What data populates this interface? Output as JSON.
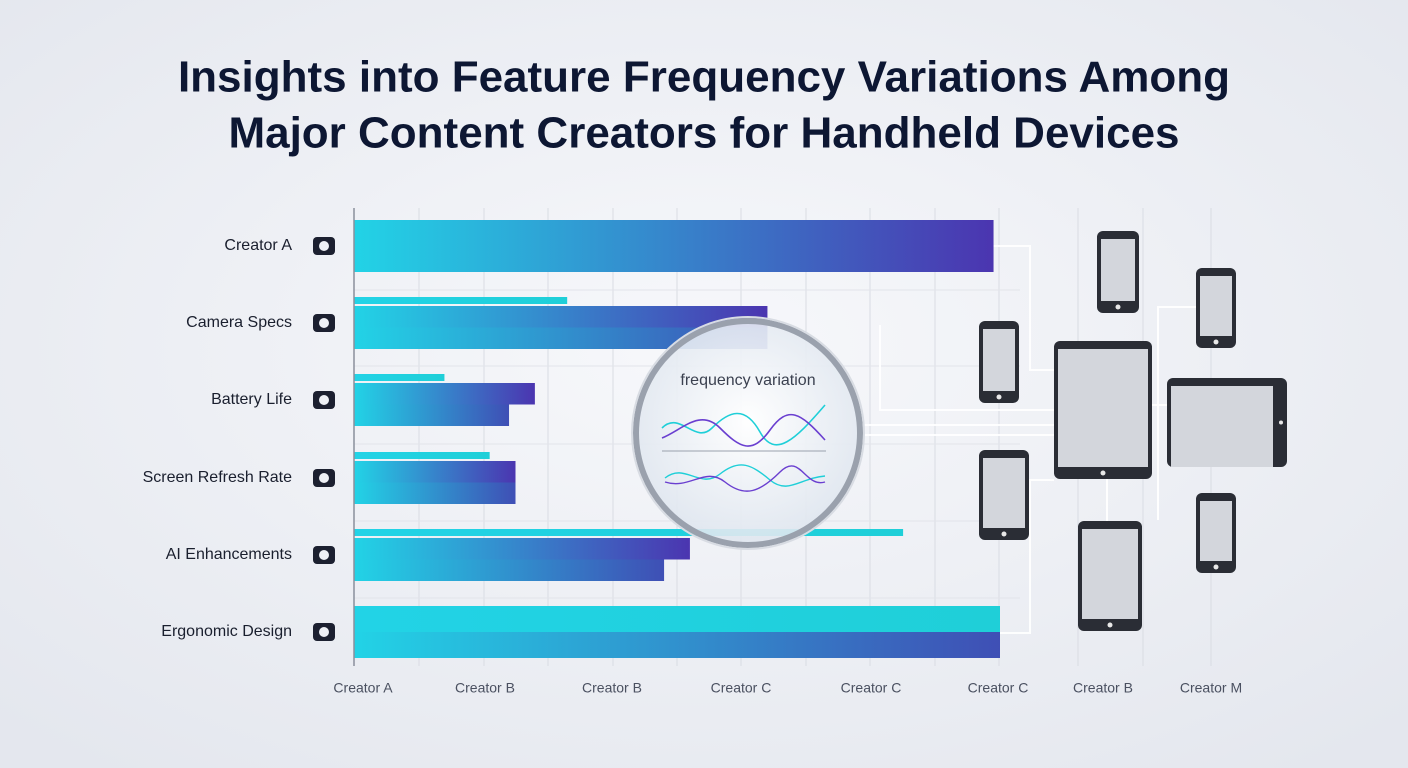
{
  "chart_data": {
    "type": "hbar",
    "title_lines": [
      "Insights into Feature Frequency Variations Among",
      "Major Content Creators for Handheld Devices"
    ],
    "categories": [
      "Creator A",
      "Camera Specs",
      "Battery Life",
      "Screen Refresh Rate",
      "AI Enhancements",
      "Ergonomic Design"
    ],
    "series": [
      {
        "color": "#1fcfd8",
        "values": [
          null,
          33,
          14,
          21,
          85,
          100
        ]
      },
      {
        "color": "#4b35b0",
        "values": [
          99,
          64,
          28,
          25,
          52,
          null
        ]
      },
      {
        "color": "#3f4fb5",
        "values": [
          null,
          64,
          24,
          25,
          48,
          100
        ]
      }
    ],
    "xlim": [
      0,
      100
    ],
    "x_labels": [
      "Creator A",
      "Creator B",
      "Creator B",
      "Creator C",
      "Creator C",
      "Creator C",
      "Creator B",
      "Creator M"
    ],
    "annotation": "frequency variation"
  }
}
